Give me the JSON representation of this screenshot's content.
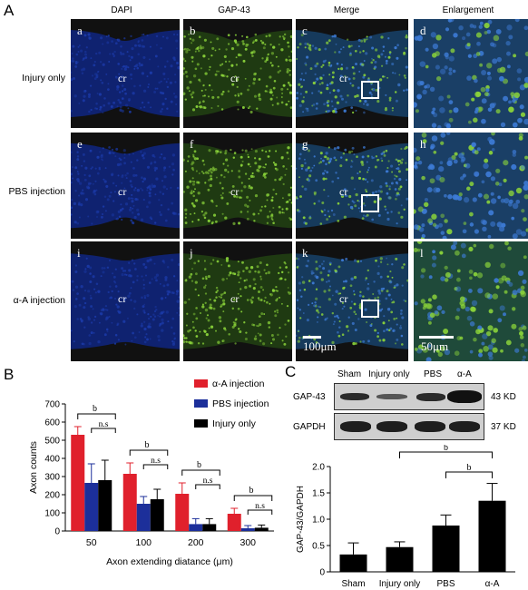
{
  "panels": {
    "A": "A",
    "B": "B",
    "C": "C"
  },
  "micrographs": {
    "columns": [
      "DAPI",
      "GAP-43",
      "Merge",
      "Enlargement"
    ],
    "rows": [
      "Injury only",
      "PBS injection",
      "α-A injection"
    ],
    "tile_letters": [
      "a",
      "b",
      "c",
      "d",
      "e",
      "f",
      "g",
      "h",
      "i",
      "j",
      "k",
      "l"
    ],
    "cr_label": "cr",
    "scale_100": "100μm",
    "scale_50": "50μm",
    "colors": {
      "dapi": "#1b3aa8",
      "gap43": "#8bd43a",
      "background": "#111111"
    }
  },
  "chartB": {
    "chart_data": {
      "type": "bar",
      "categories": [
        "50",
        "100",
        "200",
        "300"
      ],
      "series": [
        {
          "name": "α-A injection",
          "color": "#e0202c",
          "values": [
            530,
            315,
            205,
            95
          ],
          "errors": [
            45,
            60,
            60,
            30
          ]
        },
        {
          "name": "PBS injection",
          "color": "#1c2f9a",
          "values": [
            265,
            150,
            38,
            15
          ],
          "errors": [
            105,
            40,
            30,
            15
          ]
        },
        {
          "name": "Injury only",
          "color": "#000000",
          "values": [
            280,
            175,
            38,
            18
          ],
          "errors": [
            110,
            55,
            30,
            15
          ]
        }
      ],
      "xlabel": "Axon extending diatance (μm)",
      "ylabel": "Axon counts",
      "ylim": [
        0,
        700
      ],
      "yticks": [
        "0",
        "100",
        "200",
        "300",
        "400",
        "500",
        "600",
        "700"
      ],
      "sig_labels": [
        "b",
        "n.s",
        "b",
        "n.s",
        "b",
        "n.s",
        "b",
        "n.s"
      ]
    }
  },
  "chartC": {
    "blot": {
      "lanes": [
        "Sham",
        "Injury only",
        "PBS",
        "α-A"
      ],
      "proteins": [
        "GAP-43",
        "GAPDH"
      ],
      "sizes": [
        "43 KD",
        "37 KD"
      ]
    },
    "chart_data": {
      "type": "bar",
      "categories": [
        "Sham",
        "Injury only",
        "PBS",
        "α-A"
      ],
      "values": [
        0.33,
        0.47,
        0.88,
        1.35
      ],
      "errors": [
        0.22,
        0.1,
        0.2,
        0.33
      ],
      "ylabel": "GAP-43/GAPDH",
      "ylim": [
        0,
        2.0
      ],
      "yticks": [
        "0",
        "0.5",
        "1.0",
        "1.5",
        "2.0"
      ],
      "sig_labels": [
        "b",
        "b"
      ],
      "color": "#000000"
    }
  }
}
